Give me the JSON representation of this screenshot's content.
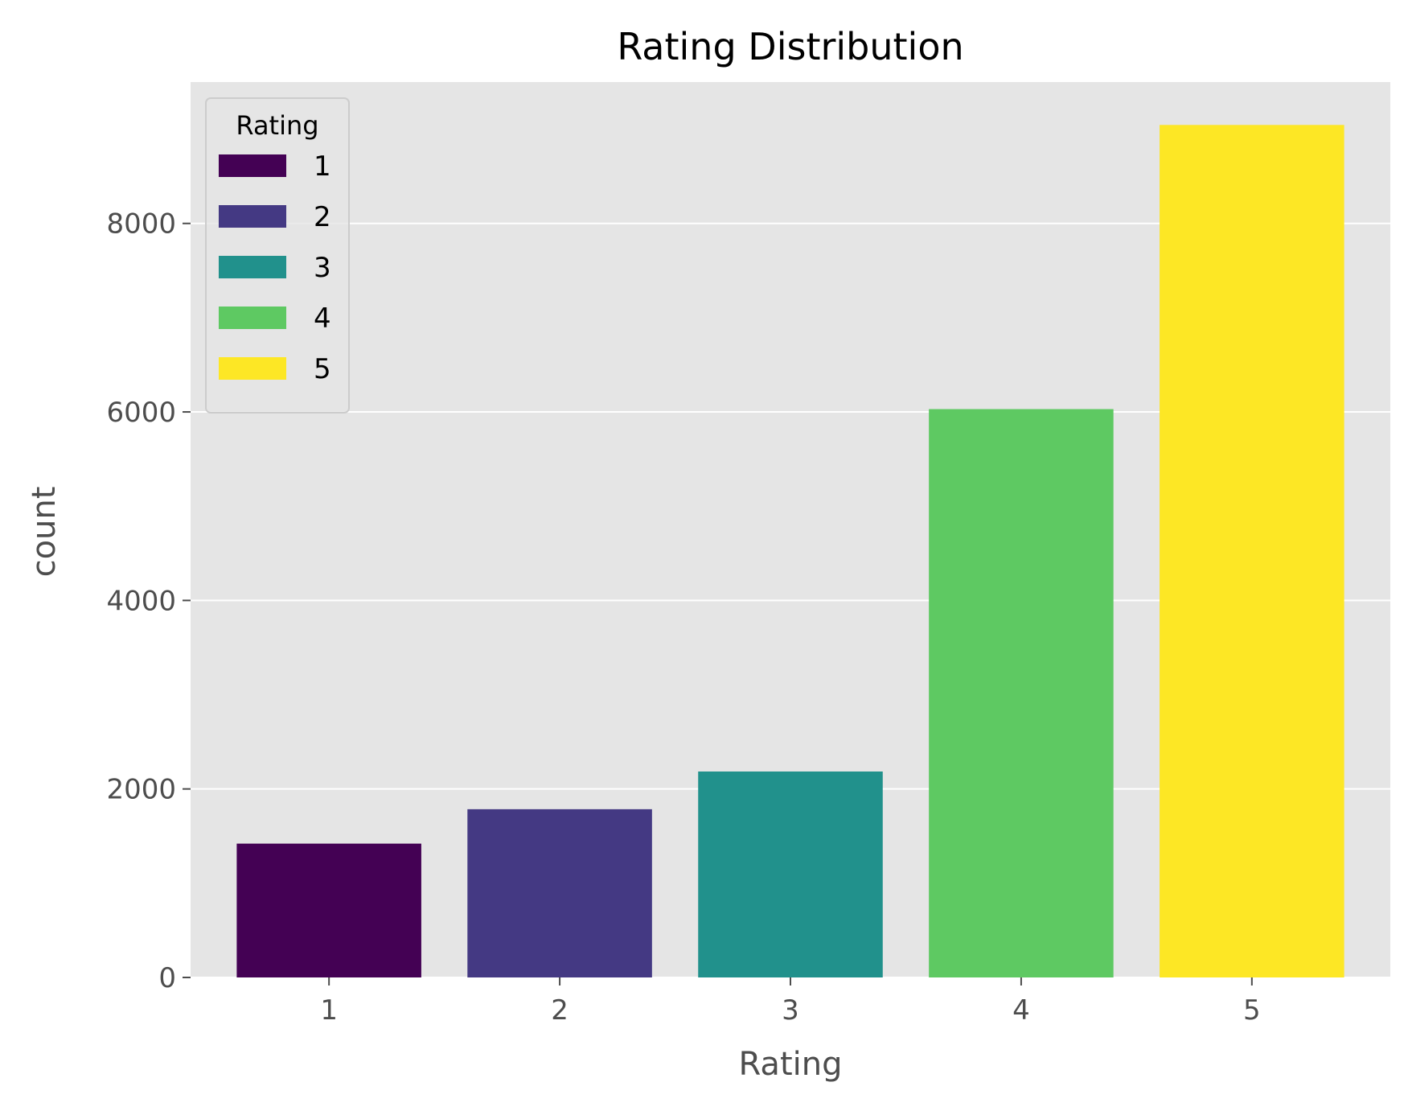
{
  "chart_data": {
    "type": "bar",
    "title": "Rating Distribution",
    "xlabel": "Rating",
    "ylabel": "count",
    "categories": [
      "1",
      "2",
      "3",
      "4",
      "5"
    ],
    "values": [
      1420,
      1785,
      2185,
      6030,
      9045
    ],
    "colors": [
      "#440154",
      "#443983",
      "#21918c",
      "#5ec962",
      "#fde725"
    ],
    "ylim": [
      0,
      9500
    ],
    "yticks": [
      0,
      2000,
      4000,
      6000,
      8000
    ],
    "grid": true,
    "background": "#e5e5e5",
    "legend": {
      "title": "Rating",
      "placement": "top-left",
      "entries": [
        "1",
        "2",
        "3",
        "4",
        "5"
      ]
    }
  }
}
